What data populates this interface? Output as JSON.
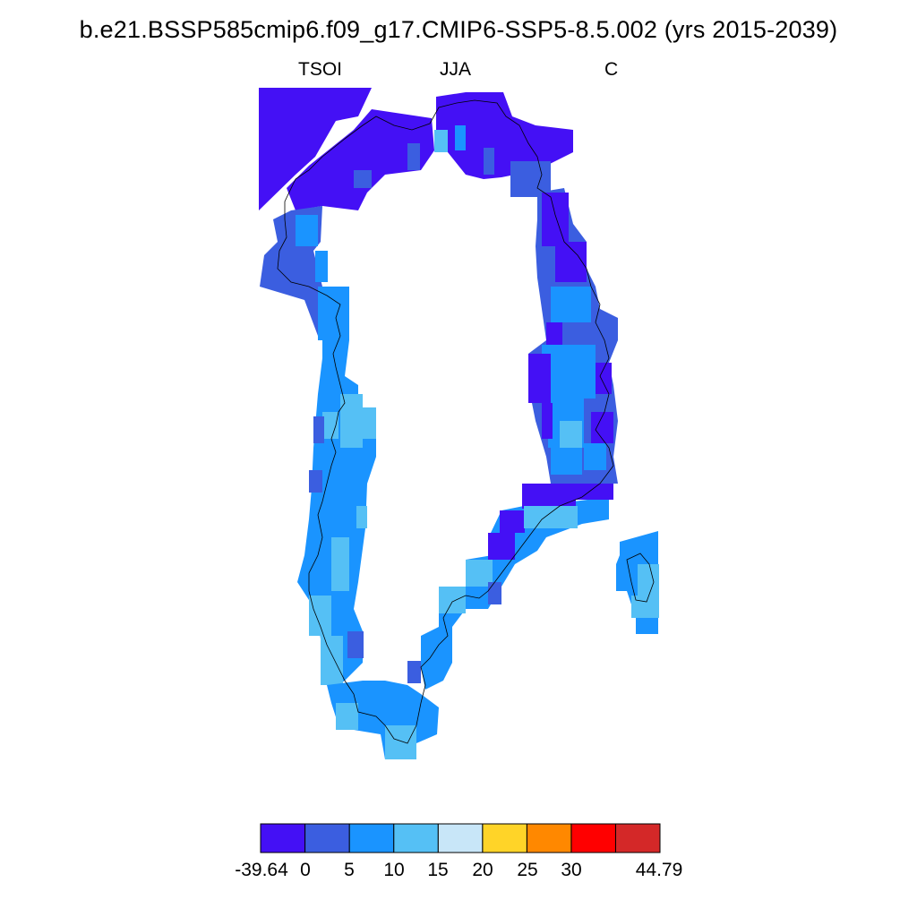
{
  "title": "b.e21.BSSP585cmip6.f09_g17.CMIP6-SSP5-8.5.002 (yrs 2015-2039)",
  "subtitle_left": "TSOI",
  "subtitle_center": "JJA",
  "subtitle_right": "C",
  "colorbar": {
    "colors": [
      "#4410f5",
      "#3b5ee0",
      "#1a94ff",
      "#55c0f5",
      "#c8e6f8",
      "#ffd428",
      "#ff8800",
      "#ff0000",
      "#d42828"
    ],
    "labels": [
      "-39.64",
      "0",
      "5",
      "10",
      "15",
      "20",
      "25",
      "30",
      "44.79"
    ]
  },
  "map": {
    "region": "Greenland",
    "field_colors": {
      "dark": "#4410f5",
      "mid": "#3b5ee0",
      "blue": "#1a94ff",
      "light": "#55c0f5",
      "pale": "#c8e6f8"
    }
  }
}
